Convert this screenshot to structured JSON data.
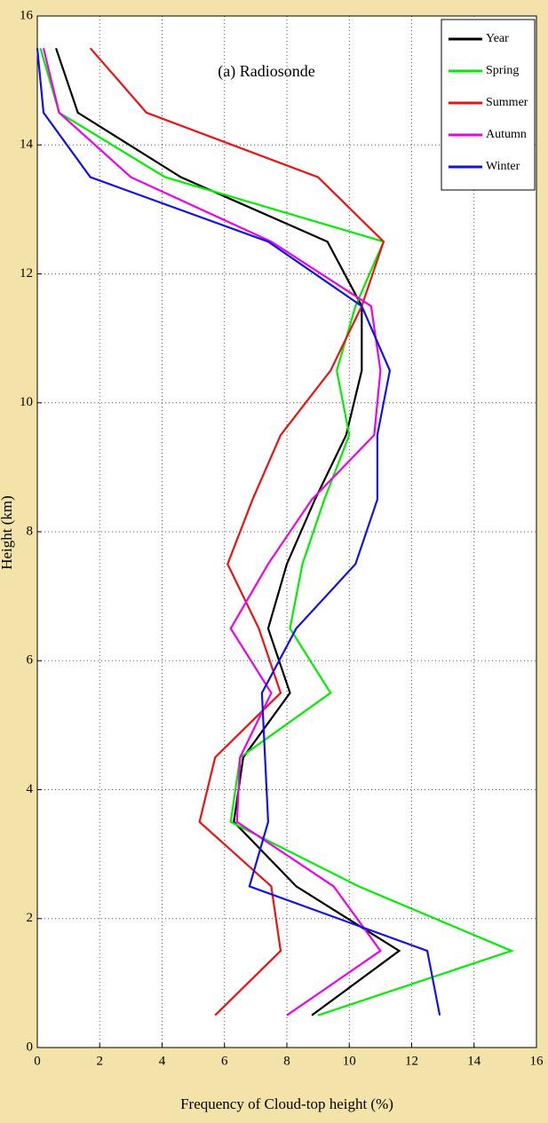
{
  "chart_data": {
    "type": "line",
    "annotation": "(a) Radiosonde",
    "x_label": "Frequency of Cloud-top height (%)",
    "y_label": "Height (km)",
    "y": [
      0.5,
      1.5,
      2.5,
      3.5,
      4.5,
      5.5,
      6.5,
      7.5,
      8.5,
      9.5,
      10.5,
      11.5,
      12.5,
      13.5,
      14.5,
      15.5
    ],
    "series": [
      {
        "name": "Year",
        "color": "#000000",
        "values": [
          8.8,
          11.6,
          8.3,
          6.3,
          6.6,
          8.1,
          7.4,
          8.0,
          8.9,
          9.9,
          10.4,
          10.4,
          9.3,
          4.6,
          1.3,
          0.6
        ]
      },
      {
        "name": "Spring",
        "color": "#00ee00",
        "values": [
          9.0,
          15.2,
          10.3,
          6.2,
          6.5,
          9.4,
          8.1,
          8.5,
          9.2,
          10.0,
          9.6,
          10.2,
          11.1,
          4.1,
          0.7,
          0.1
        ]
      },
      {
        "name": "Summer",
        "color": "#ee1111",
        "values": [
          5.7,
          7.8,
          7.5,
          5.2,
          5.7,
          7.8,
          7.1,
          6.1,
          6.9,
          7.8,
          9.4,
          10.4,
          11.1,
          9.0,
          3.5,
          1.7
        ]
      },
      {
        "name": "Autumn",
        "color": "#ee00ee",
        "values": [
          8.0,
          11.0,
          9.5,
          6.4,
          6.5,
          7.5,
          6.2,
          7.4,
          8.8,
          10.8,
          11.0,
          10.7,
          7.5,
          3.0,
          0.7,
          0.2
        ]
      },
      {
        "name": "Winter",
        "color": "#1111ee",
        "values": [
          12.9,
          12.5,
          6.8,
          7.4,
          7.3,
          7.2,
          8.3,
          10.2,
          10.9,
          10.9,
          11.3,
          10.4,
          7.4,
          1.7,
          0.2,
          0.0
        ]
      }
    ],
    "xlim": [
      0,
      16
    ],
    "xticks": [
      0,
      2,
      4,
      6,
      8,
      10,
      12,
      14,
      16
    ],
    "ylim": [
      0,
      16
    ],
    "yticks": [
      0,
      2,
      4,
      6,
      8,
      10,
      12,
      14,
      16
    ],
    "grid": true,
    "legend": "top-right"
  }
}
